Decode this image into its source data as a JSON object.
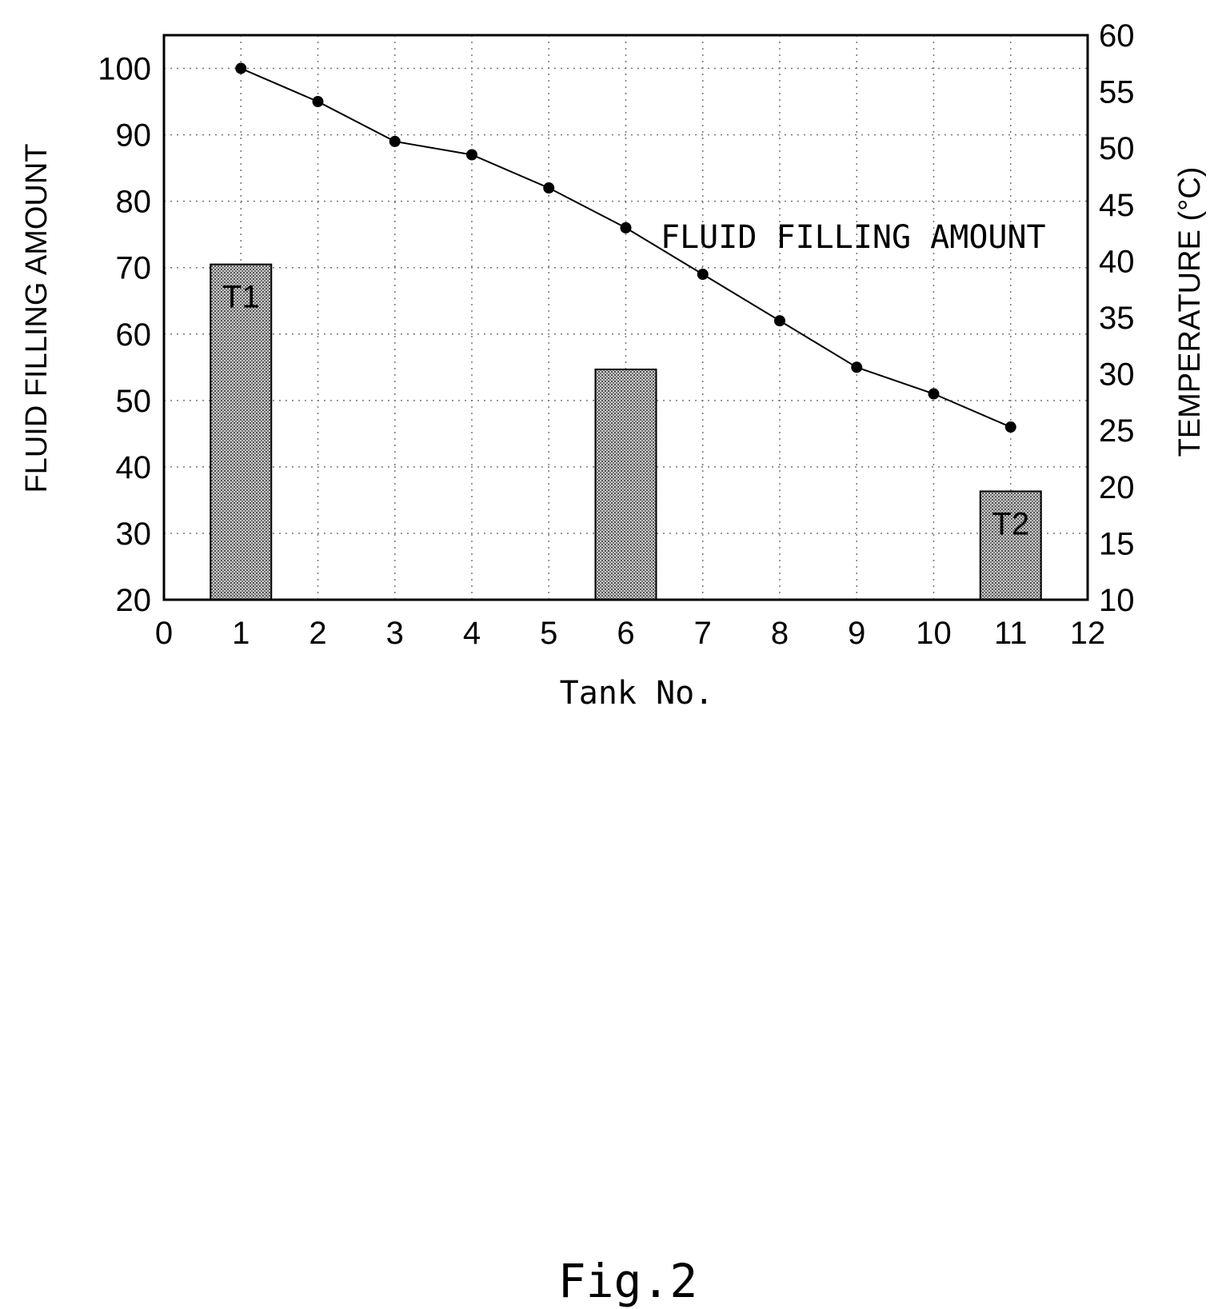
{
  "chart_data": {
    "type": "bar+line",
    "title": "",
    "xlabel": "Tank No.",
    "ylabel_left": "FLUID FILLING AMOUNT",
    "ylabel_right": "TEMPERATURE (°C)",
    "xlim": [
      0,
      12
    ],
    "ylim_left": [
      20,
      105
    ],
    "ylim_right": [
      10,
      60
    ],
    "x_ticks": [
      "0",
      "1",
      "2",
      "3",
      "4",
      "5",
      "6",
      "7",
      "8",
      "9",
      "10",
      "11",
      "12"
    ],
    "y_left_ticks": [
      "20",
      "30",
      "40",
      "50",
      "60",
      "70",
      "80",
      "90",
      "100"
    ],
    "y_right_ticks": [
      "10",
      "15",
      "20",
      "25",
      "30",
      "35",
      "40",
      "45",
      "50",
      "55",
      "60"
    ],
    "grid": true,
    "bars": {
      "axis": "right",
      "points": [
        {
          "x": 1,
          "value": 39.7,
          "label": "T1"
        },
        {
          "x": 6,
          "value": 30.4,
          "label": ""
        },
        {
          "x": 11,
          "value": 19.6,
          "label": "T2"
        }
      ]
    },
    "line": {
      "name": "FLUID FILLING AMOUNT",
      "axis": "left",
      "x": [
        1,
        2,
        3,
        4,
        5,
        6,
        7,
        8,
        9,
        10,
        11
      ],
      "y": [
        100,
        95,
        89,
        87,
        82,
        76,
        69,
        62,
        55,
        51,
        46
      ]
    },
    "annotation": "FLUID FILLING AMOUNT"
  },
  "caption": "Fig.2"
}
